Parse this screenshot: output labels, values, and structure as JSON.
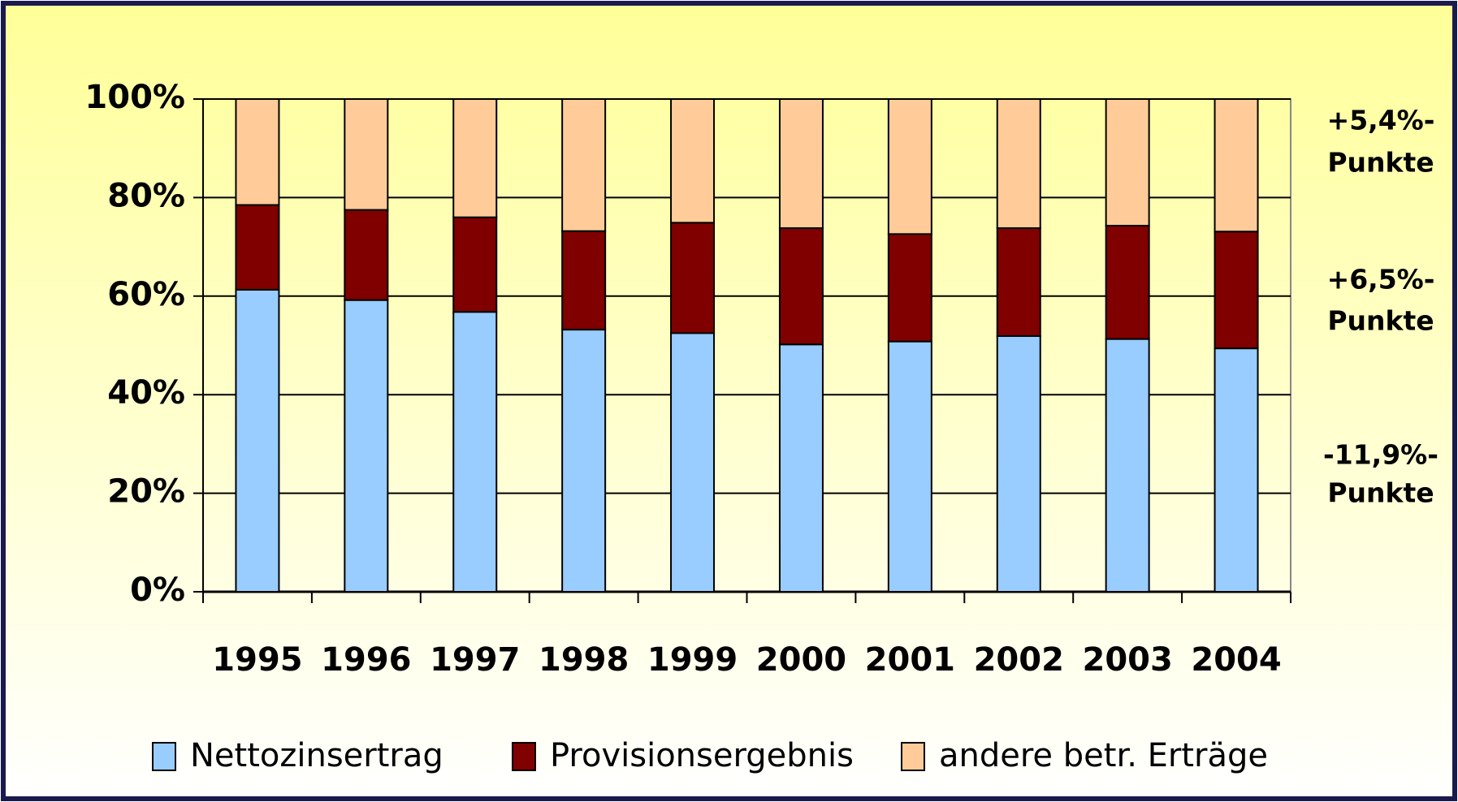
{
  "chart_data": {
    "type": "stacked-bar",
    "categories": [
      "1995",
      "1996",
      "1997",
      "1998",
      "1999",
      "2000",
      "2001",
      "2002",
      "2003",
      "2004"
    ],
    "series": [
      {
        "name": "Nettozinsertrag",
        "color": "#99ccff",
        "values": [
          61.3,
          59.2,
          56.8,
          53.2,
          52.5,
          50.2,
          50.8,
          51.9,
          51.3,
          49.4
        ]
      },
      {
        "name": "Provisionsergebnis",
        "color": "#800000",
        "values": [
          17.2,
          18.3,
          19.2,
          20.0,
          22.4,
          23.6,
          21.8,
          21.9,
          23.0,
          23.7
        ]
      },
      {
        "name": "andere betr. Erträge",
        "color": "#ffcc99",
        "values": [
          21.5,
          22.5,
          24.0,
          26.8,
          25.1,
          26.2,
          27.4,
          26.2,
          25.7,
          26.9
        ]
      }
    ],
    "ylim": [
      0,
      100
    ],
    "yticks": [
      {
        "value": 0,
        "label": "0%"
      },
      {
        "value": 20,
        "label": "20%"
      },
      {
        "value": 40,
        "label": "40%"
      },
      {
        "value": 60,
        "label": "60%"
      },
      {
        "value": 80,
        "label": "80%"
      },
      {
        "value": 100,
        "label": "100%"
      }
    ],
    "grid": true,
    "legend": "bottom",
    "annotations": [
      [
        "+5,4%-",
        "Punkte"
      ],
      [
        "+6,5%-",
        "Punkte"
      ],
      [
        "-11,9%-",
        "Punkte"
      ]
    ]
  }
}
